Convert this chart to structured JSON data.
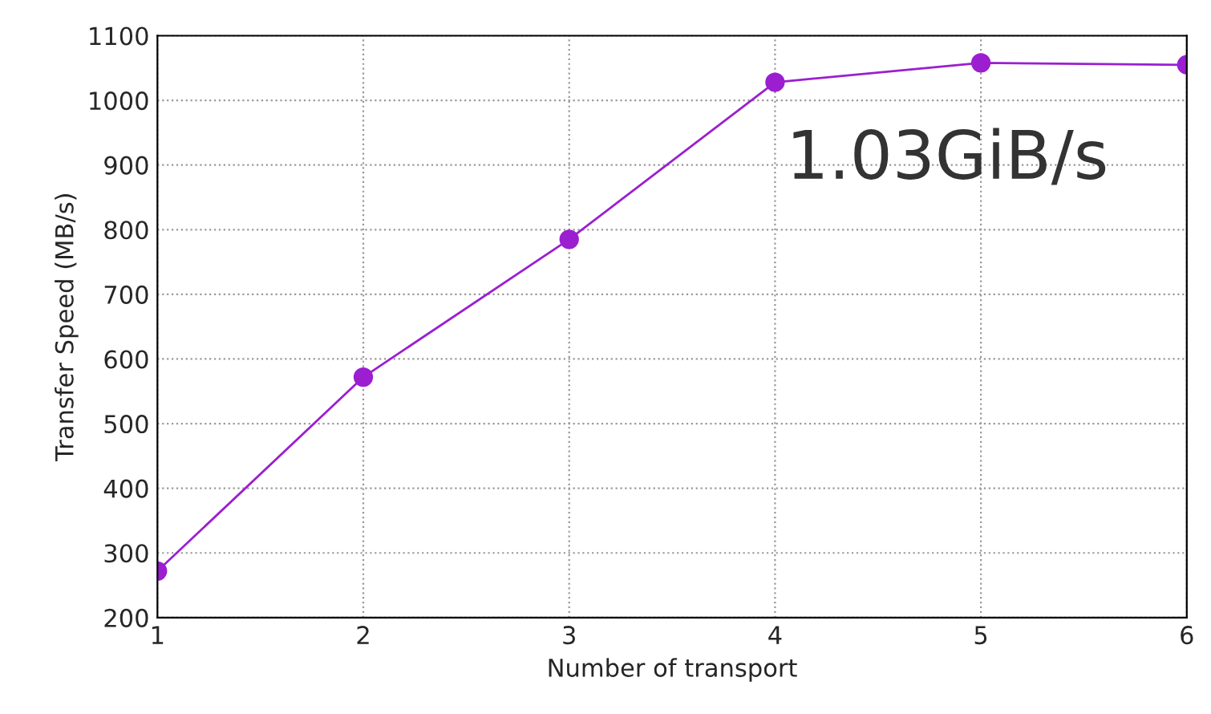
{
  "chart_data": {
    "type": "line",
    "xlabel": "Number of transport",
    "ylabel": "Transfer Speed (MB/s)",
    "x": [
      1,
      2,
      3,
      4,
      5,
      6
    ],
    "series": [
      {
        "color": "#9b1fd0",
        "values": [
          272,
          572,
          785,
          1028,
          1058,
          1055
        ]
      }
    ],
    "xlim": [
      1,
      6
    ],
    "xticks": [
      1,
      2,
      3,
      4,
      5,
      6
    ],
    "ylim": [
      200,
      1100
    ],
    "yticks": [
      200,
      300,
      400,
      500,
      600,
      700,
      800,
      900,
      1000,
      1100
    ],
    "grid": true,
    "marker": "circle",
    "line_style": "solid",
    "annotations": [
      {
        "text": "1.03GiB/s",
        "x": 4,
        "y": 1028
      }
    ]
  }
}
